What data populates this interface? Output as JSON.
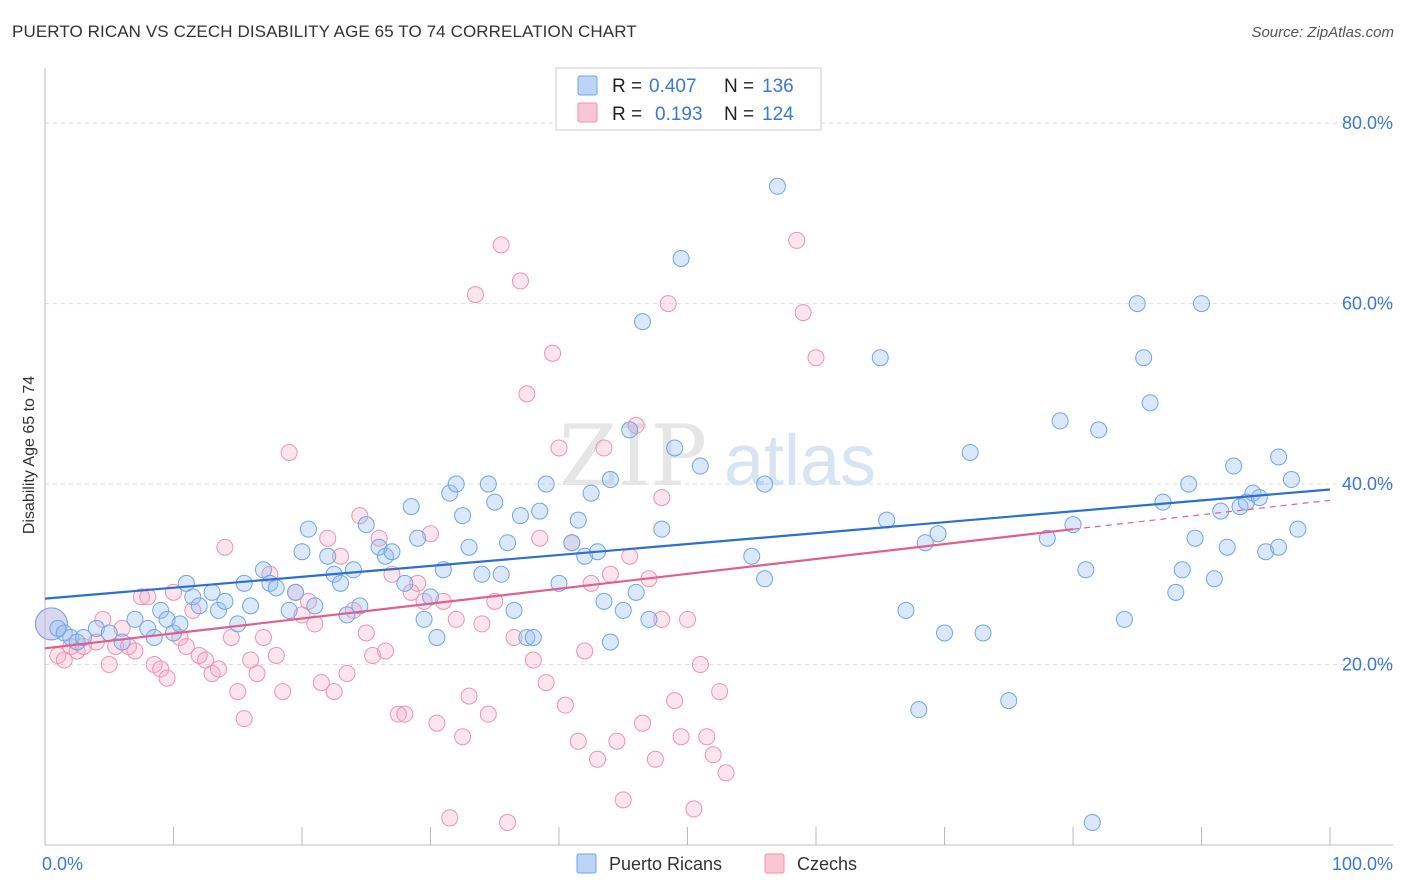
{
  "header": {
    "title": "PUERTO RICAN VS CZECH DISABILITY AGE 65 TO 74 CORRELATION CHART",
    "source": "Source: ZipAtlas.com"
  },
  "watermark": {
    "zip": "ZIP",
    "atlas": "atlas"
  },
  "colors": {
    "blue": "#6ea6e8",
    "blue_fill": "rgba(150,190,240,0.35)",
    "blue_line": "#2a6fd1",
    "pink": "#ef92b0",
    "pink_fill": "rgba(245,170,195,0.3)",
    "pink_line": "#e0608d",
    "grid": "#dddddd",
    "tick_label": "#3b78d4"
  },
  "legend_box": {
    "row1": {
      "r_label": "R = ",
      "r_value": "0.407",
      "n_label": "N = ",
      "n_value": "136"
    },
    "row2": {
      "r_label": "R = ",
      "r_value": "0.193",
      "n_label": "N = ",
      "n_value": "124"
    }
  },
  "legend_bottom": {
    "series1": "Puerto Ricans",
    "series2": "Czechs"
  },
  "chart_data": {
    "type": "scatter",
    "title": "PUERTO RICAN VS CZECH DISABILITY AGE 65 TO 74 CORRELATION CHART",
    "xlabel": "",
    "ylabel": "Disability Age 65 to 74",
    "xlim": [
      0,
      100
    ],
    "ylim": [
      0,
      85
    ],
    "x_tick_labels": [
      "0.0%",
      "100.0%"
    ],
    "y_ticks": [
      20,
      40,
      60,
      80
    ],
    "y_tick_labels": [
      "20.0%",
      "40.0%",
      "60.0%",
      "80.0%"
    ],
    "grid": true,
    "legend_position": "top-center",
    "series": [
      {
        "name": "Puerto Ricans",
        "R": 0.407,
        "N": 136,
        "trend": {
          "x": [
            0,
            100
          ],
          "y": [
            27.3,
            39.4
          ],
          "dashed_from": null
        },
        "points": [
          [
            0.5,
            24.5
          ],
          [
            1,
            24
          ],
          [
            1.5,
            23.5
          ],
          [
            2,
            23
          ],
          [
            2.5,
            22.5
          ],
          [
            3,
            23
          ],
          [
            4,
            24
          ],
          [
            5,
            23.5
          ],
          [
            6,
            22.5
          ],
          [
            7,
            25
          ],
          [
            8,
            24
          ],
          [
            8.5,
            23
          ],
          [
            9,
            26
          ],
          [
            9.5,
            25
          ],
          [
            10,
            23.5
          ],
          [
            10.5,
            24.5
          ],
          [
            11,
            29
          ],
          [
            11.5,
            27.5
          ],
          [
            12,
            26.5
          ],
          [
            13,
            28
          ],
          [
            13.5,
            26
          ],
          [
            14,
            27
          ],
          [
            15,
            24.5
          ],
          [
            15.5,
            29
          ],
          [
            16,
            26.5
          ],
          [
            17,
            30.5
          ],
          [
            17.5,
            29
          ],
          [
            18,
            28.5
          ],
          [
            19,
            26
          ],
          [
            19.5,
            28
          ],
          [
            20,
            32.5
          ],
          [
            20.5,
            35
          ],
          [
            21,
            26.5
          ],
          [
            22,
            32
          ],
          [
            22.5,
            30
          ],
          [
            23,
            29
          ],
          [
            23.5,
            25.5
          ],
          [
            24,
            30.5
          ],
          [
            24.5,
            26.5
          ],
          [
            25,
            35.5
          ],
          [
            26,
            33
          ],
          [
            26.5,
            32
          ],
          [
            27,
            32.5
          ],
          [
            28,
            29
          ],
          [
            28.5,
            37.5
          ],
          [
            29,
            34
          ],
          [
            29.5,
            25
          ],
          [
            30,
            27.5
          ],
          [
            30.5,
            23
          ],
          [
            31,
            30.5
          ],
          [
            31.5,
            39
          ],
          [
            32,
            40
          ],
          [
            32.5,
            36.5
          ],
          [
            33,
            33
          ],
          [
            34,
            30
          ],
          [
            34.5,
            40
          ],
          [
            35,
            38
          ],
          [
            35.5,
            30
          ],
          [
            36,
            33.5
          ],
          [
            36.5,
            26
          ],
          [
            37,
            36.5
          ],
          [
            37.5,
            23
          ],
          [
            38,
            23
          ],
          [
            38.5,
            37
          ],
          [
            39,
            40
          ],
          [
            40,
            29
          ],
          [
            41,
            33.5
          ],
          [
            41.5,
            36
          ],
          [
            42,
            32
          ],
          [
            42.5,
            39
          ],
          [
            43,
            32.5
          ],
          [
            43.5,
            27
          ],
          [
            44,
            40.5
          ],
          [
            44,
            22.5
          ],
          [
            45,
            26
          ],
          [
            45.5,
            46
          ],
          [
            46,
            28
          ],
          [
            46.5,
            58
          ],
          [
            47,
            25
          ],
          [
            48,
            35
          ],
          [
            49,
            44
          ],
          [
            49.5,
            65
          ],
          [
            51,
            42
          ],
          [
            55,
            32
          ],
          [
            56,
            29.5
          ],
          [
            56,
            40
          ],
          [
            57,
            73
          ],
          [
            65,
            54
          ],
          [
            65.5,
            36
          ],
          [
            67,
            26
          ],
          [
            68,
            15
          ],
          [
            68.5,
            33.5
          ],
          [
            69.5,
            34.5
          ],
          [
            70,
            23.5
          ],
          [
            72,
            43.5
          ],
          [
            73,
            23.5
          ],
          [
            75,
            16
          ],
          [
            78,
            34
          ],
          [
            79,
            47
          ],
          [
            80,
            35.5
          ],
          [
            81,
            30.5
          ],
          [
            81.5,
            2.5
          ],
          [
            82,
            46
          ],
          [
            84,
            25
          ],
          [
            85,
            60
          ],
          [
            85.5,
            54
          ],
          [
            86,
            49
          ],
          [
            87,
            38
          ],
          [
            88,
            28
          ],
          [
            88.5,
            30.5
          ],
          [
            89,
            40
          ],
          [
            89.5,
            34
          ],
          [
            90,
            60
          ],
          [
            91,
            29.5
          ],
          [
            91.5,
            37
          ],
          [
            92,
            33
          ],
          [
            92.5,
            42
          ],
          [
            93,
            37.5
          ],
          [
            93.5,
            38
          ],
          [
            94,
            39
          ],
          [
            94.5,
            38.5
          ],
          [
            95,
            32.5
          ],
          [
            96,
            33
          ],
          [
            96,
            43
          ],
          [
            97,
            40.5
          ],
          [
            97.5,
            35
          ]
        ]
      },
      {
        "name": "Czechs",
        "R": 0.193,
        "N": 124,
        "trend": {
          "x": [
            0,
            80,
            100
          ],
          "y": [
            21.8,
            35.0,
            38.2
          ],
          "dashed_from": 80
        },
        "points": [
          [
            0.5,
            24.5
          ],
          [
            1,
            21
          ],
          [
            1.5,
            20.5
          ],
          [
            2,
            22
          ],
          [
            2.5,
            21.5
          ],
          [
            3,
            22
          ],
          [
            4,
            22.5
          ],
          [
            4.5,
            25
          ],
          [
            5,
            20
          ],
          [
            5.5,
            22
          ],
          [
            6,
            24
          ],
          [
            6.5,
            22
          ],
          [
            7,
            21.5
          ],
          [
            7.5,
            27.5
          ],
          [
            8,
            27.5
          ],
          [
            8.5,
            20
          ],
          [
            9,
            19.5
          ],
          [
            9.5,
            18.5
          ],
          [
            10,
            28
          ],
          [
            10.5,
            23
          ],
          [
            11,
            22
          ],
          [
            11.5,
            26
          ],
          [
            12,
            21
          ],
          [
            12.5,
            20.5
          ],
          [
            13,
            19
          ],
          [
            13.5,
            19.5
          ],
          [
            14,
            33
          ],
          [
            14.5,
            23
          ],
          [
            15,
            17
          ],
          [
            15.5,
            14
          ],
          [
            16,
            20.5
          ],
          [
            16.5,
            19
          ],
          [
            17,
            23
          ],
          [
            17.5,
            30
          ],
          [
            18,
            21
          ],
          [
            18.5,
            17
          ],
          [
            19,
            43.5
          ],
          [
            19.5,
            28
          ],
          [
            20,
            25.5
          ],
          [
            20.5,
            27
          ],
          [
            21,
            24.5
          ],
          [
            21.5,
            18
          ],
          [
            22,
            34
          ],
          [
            22.5,
            17
          ],
          [
            23,
            32
          ],
          [
            23.5,
            19
          ],
          [
            24,
            26
          ],
          [
            24.5,
            36.5
          ],
          [
            25,
            23.5
          ],
          [
            25.5,
            21
          ],
          [
            26,
            34
          ],
          [
            26.5,
            21.5
          ],
          [
            27,
            30
          ],
          [
            27.5,
            14.5
          ],
          [
            28,
            14.5
          ],
          [
            28.5,
            28
          ],
          [
            29,
            29
          ],
          [
            29.5,
            27
          ],
          [
            30,
            34.5
          ],
          [
            30.5,
            13.5
          ],
          [
            31,
            27
          ],
          [
            31.5,
            3
          ],
          [
            32,
            25
          ],
          [
            32.5,
            12
          ],
          [
            33,
            16.5
          ],
          [
            33.5,
            61
          ],
          [
            34,
            24.5
          ],
          [
            34.5,
            14.5
          ],
          [
            35,
            27
          ],
          [
            35.5,
            66.5
          ],
          [
            36,
            2.5
          ],
          [
            36.5,
            23
          ],
          [
            37,
            62.5
          ],
          [
            37.5,
            50
          ],
          [
            38,
            20.5
          ],
          [
            38.5,
            34
          ],
          [
            39,
            18
          ],
          [
            39.5,
            54.5
          ],
          [
            40,
            44
          ],
          [
            40.5,
            15.5
          ],
          [
            41,
            33.5
          ],
          [
            41.5,
            11.5
          ],
          [
            42,
            21.5
          ],
          [
            42.5,
            29
          ],
          [
            43,
            9.5
          ],
          [
            43.5,
            44
          ],
          [
            44,
            30
          ],
          [
            44.5,
            11.5
          ],
          [
            45,
            5
          ],
          [
            45.5,
            32
          ],
          [
            46,
            46.5
          ],
          [
            46.5,
            13.5
          ],
          [
            47,
            29.5
          ],
          [
            47.5,
            9.5
          ],
          [
            48,
            38.5
          ],
          [
            48.5,
            60
          ],
          [
            49,
            16
          ],
          [
            49.5,
            12
          ],
          [
            50,
            25
          ],
          [
            50.5,
            4
          ],
          [
            51,
            20
          ],
          [
            51.5,
            12
          ],
          [
            52,
            10
          ],
          [
            52.5,
            17
          ],
          [
            53,
            8
          ],
          [
            58.5,
            67
          ],
          [
            59,
            59
          ],
          [
            60,
            54
          ],
          [
            48,
            25
          ]
        ]
      }
    ]
  }
}
